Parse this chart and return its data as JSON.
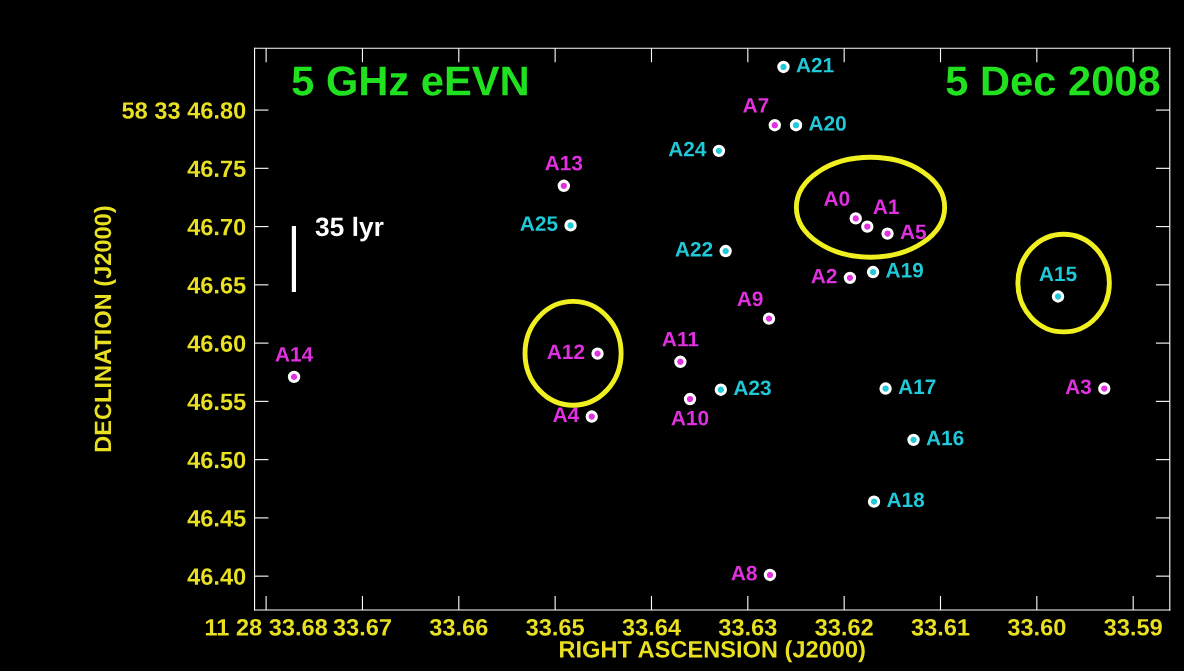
{
  "chart_data": {
    "type": "scatter",
    "xlabel": "RIGHT ASCENSION (J2000)",
    "ylabel": "DECLINATION (J2000)",
    "annotations": [
      "5 GHz eEVN",
      "5 Dec 2008",
      "35 lyr"
    ],
    "xlim": [
      33.6812,
      33.5862
    ],
    "ylim": [
      46.371,
      46.853
    ],
    "xticks": [
      {
        "value": 33.68,
        "label": "11 28 33.68"
      },
      33.67,
      33.66,
      33.65,
      33.64,
      33.63,
      33.62,
      33.61,
      {
        "value": 33.6,
        "label": "33.60"
      },
      33.59
    ],
    "yticks": [
      {
        "value": 46.4,
        "label": "46.40"
      },
      46.45,
      {
        "value": 46.5,
        "label": "46.50"
      },
      46.55,
      {
        "value": 46.6,
        "label": "46.60"
      },
      46.65,
      {
        "value": 46.7,
        "label": "46.70"
      },
      46.75,
      {
        "value": 46.8,
        "label": "58 33 46.80"
      }
    ],
    "grid": false,
    "marker": "circle",
    "series": [
      {
        "color": "#e030e0",
        "x": [
          33.6771,
          33.6491,
          33.6456,
          33.6462,
          33.637,
          33.636,
          33.6277,
          33.6278,
          33.6272,
          33.6188,
          33.6176,
          33.6155,
          33.6194,
          33.593
        ],
        "values": [
          46.571,
          46.735,
          46.591,
          46.537,
          46.584,
          46.552,
          46.401,
          46.621,
          46.787,
          46.707,
          46.7,
          46.694,
          46.656,
          46.561
        ],
        "value_labels": [
          "A14",
          "A13",
          "A12",
          "A4",
          "A11",
          "A10",
          "A8",
          "A9",
          "A7",
          "A0",
          "A1",
          "A5",
          "A2",
          "A3"
        ]
      },
      {
        "color": "#20c8d8",
        "x": [
          33.6484,
          33.6328,
          33.6323,
          33.633,
          33.6263,
          33.625,
          33.617,
          33.6157,
          33.6128,
          33.6169,
          33.5978
        ],
        "values": [
          46.701,
          46.56,
          46.679,
          46.765,
          46.837,
          46.787,
          46.661,
          46.561,
          46.517,
          46.464,
          46.64
        ],
        "value_labels": [
          "A25",
          "A23",
          "A22",
          "A24",
          "A21",
          "A20",
          "A19",
          "A17",
          "A16",
          "A18",
          "A15"
        ]
      }
    ]
  }
}
